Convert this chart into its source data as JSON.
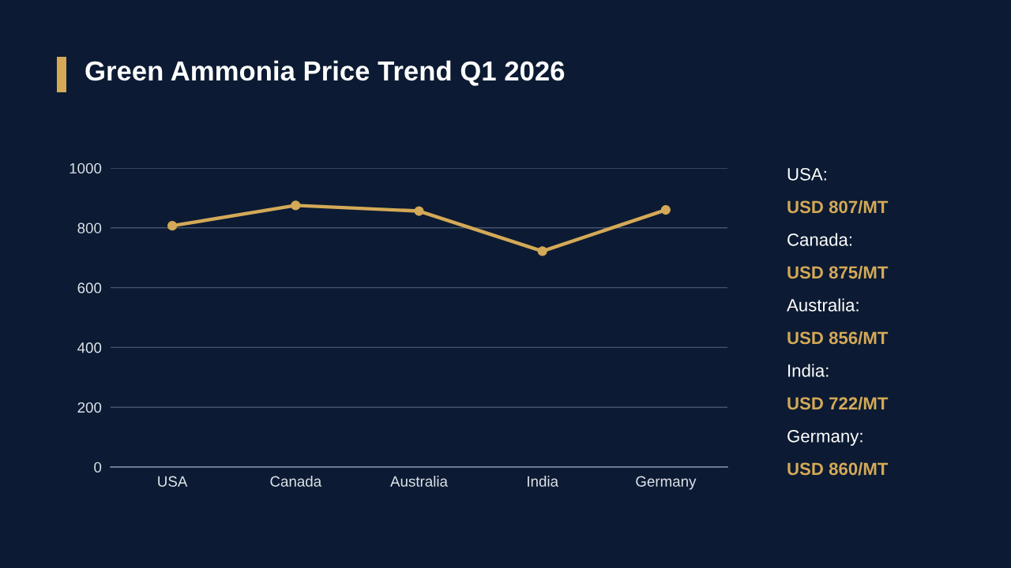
{
  "chart_data": [
    {
      "type": "line",
      "title": "Green Ammonia Price Trend Q1 2026",
      "categories": [
        "USA",
        "Canada",
        "Australia",
        "India",
        "Germany"
      ],
      "series": [
        {
          "color": "#d4a957",
          "values": [
            807,
            875,
            856,
            722,
            860
          ]
        }
      ],
      "ylim": [
        0,
        1000
      ],
      "yticks": [
        0,
        200,
        400,
        600,
        800,
        1000
      ],
      "grid": "y",
      "marker": "circle",
      "line_style": "solid"
    },
    {
      "type": "other",
      "annotations": [
        "USA:",
        "USD 807/MT",
        "Canada:",
        "USD 875/MT",
        "Australia:",
        "USD 856/MT",
        "India:",
        "USD 722/MT",
        "Germany:",
        "USD 860/MT"
      ]
    }
  ]
}
